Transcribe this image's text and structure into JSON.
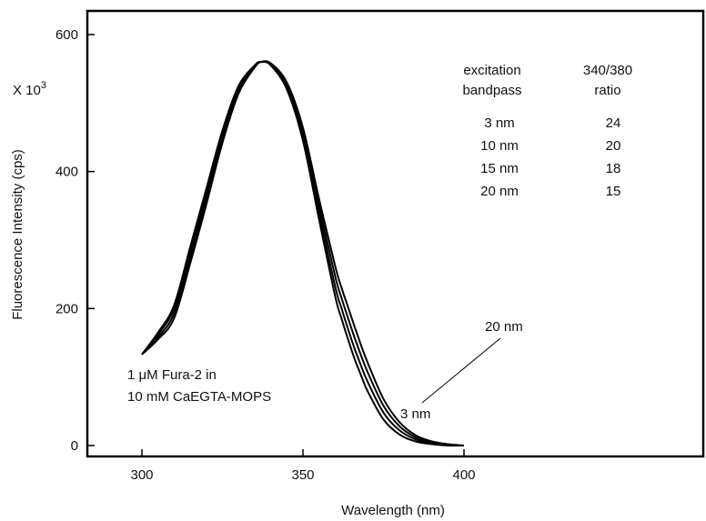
{
  "chart_data": {
    "type": "line",
    "title": "",
    "xlabel": "Wavelength  (nm)",
    "ylabel": "Fluorescence Intensity (cps)",
    "y_multiplier_label": "X 10",
    "y_multiplier_exp": "3",
    "xlim": [
      290,
      420
    ],
    "ylim": [
      -15,
      650
    ],
    "x_ticks": [
      300,
      350,
      400
    ],
    "y_ticks": [
      0,
      200,
      400,
      600
    ],
    "grid": false,
    "series": [
      {
        "x": [
          300,
          305,
          310,
          315,
          320,
          325,
          330,
          335,
          337,
          340,
          345,
          350,
          355,
          360,
          362,
          364,
          366,
          368,
          370,
          375,
          380,
          385,
          390,
          395,
          400
        ],
        "y": [
          133,
          165,
          205,
          290,
          375,
          460,
          525,
          555,
          560,
          555,
          520,
          445,
          330,
          218,
          185,
          155,
          127,
          103,
          80,
          38,
          16,
          6,
          2,
          0,
          0
        ]
      },
      {
        "x": [
          300,
          305,
          310,
          315,
          320,
          325,
          330,
          335,
          337,
          340,
          345,
          350,
          355,
          360,
          362,
          364,
          366,
          368,
          370,
          375,
          380,
          385,
          390,
          395,
          400
        ],
        "y": [
          133,
          162,
          200,
          282,
          368,
          455,
          522,
          554,
          560,
          556,
          524,
          452,
          340,
          232,
          200,
          170,
          142,
          117,
          94,
          48,
          22,
          9,
          3,
          1,
          0
        ]
      },
      {
        "x": [
          300,
          305,
          310,
          315,
          320,
          325,
          330,
          335,
          337,
          340,
          345,
          350,
          355,
          360,
          362,
          364,
          366,
          368,
          370,
          375,
          380,
          385,
          390,
          395,
          400
        ],
        "y": [
          133,
          158,
          193,
          274,
          360,
          448,
          518,
          553,
          560,
          557,
          527,
          458,
          350,
          247,
          215,
          186,
          158,
          132,
          108,
          58,
          28,
          12,
          4,
          1,
          0
        ]
      },
      {
        "x": [
          300,
          305,
          310,
          315,
          320,
          325,
          330,
          335,
          337,
          340,
          345,
          350,
          355,
          360,
          362,
          364,
          366,
          368,
          370,
          375,
          380,
          385,
          390,
          395,
          400
        ],
        "y": [
          133,
          155,
          186,
          266,
          352,
          442,
          514,
          552,
          560,
          558,
          530,
          464,
          360,
          262,
          230,
          202,
          174,
          147,
          122,
          68,
          34,
          15,
          6,
          2,
          0
        ]
      }
    ],
    "table": {
      "headers": [
        [
          "excitation",
          "bandpass"
        ],
        [
          "340/380",
          "ratio"
        ]
      ],
      "rows": [
        [
          "3 nm",
          "24"
        ],
        [
          "10 nm",
          "20"
        ],
        [
          "15 nm",
          "18"
        ],
        [
          "20 nm",
          "15"
        ]
      ]
    },
    "annotations": {
      "label_20nm": "20 nm",
      "label_3nm": "3 nm",
      "sample_line1": "1 μM Fura-2 in",
      "sample_line2": "10 mM CaEGTA-MOPS"
    }
  }
}
